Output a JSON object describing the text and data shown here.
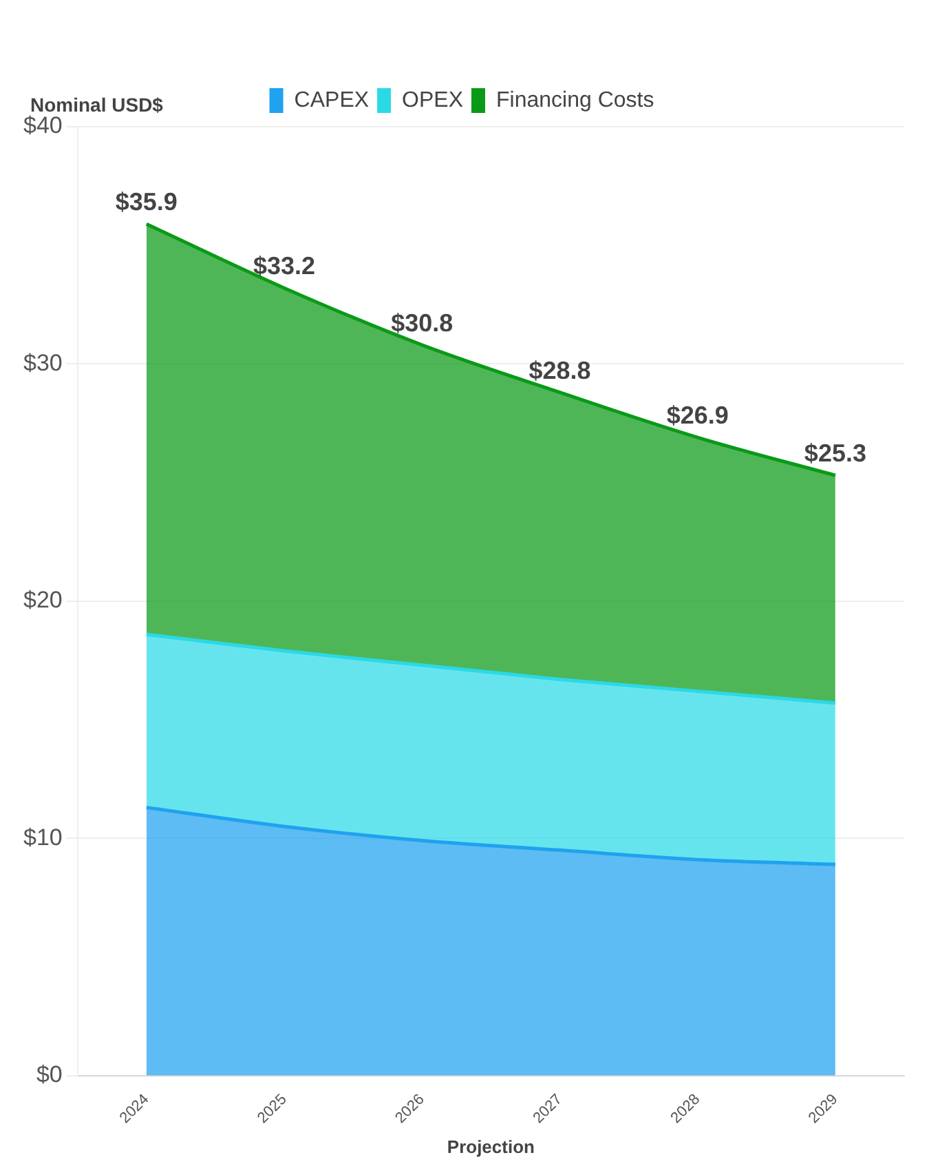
{
  "chart_data": {
    "type": "area",
    "stacked": true,
    "xlabel": "Projection",
    "ylabel": "Nominal USD$",
    "categories": [
      "2024",
      "2025",
      "2026",
      "2027",
      "2028",
      "2029"
    ],
    "series": [
      {
        "name": "CAPEX",
        "color": "#1fa2ef",
        "values": [
          11.3,
          10.5,
          9.9,
          9.5,
          9.1,
          8.9
        ]
      },
      {
        "name": "OPEX",
        "color": "#2bd9e6",
        "values": [
          7.3,
          7.4,
          7.4,
          7.2,
          7.1,
          6.8
        ]
      },
      {
        "name": "Financing Costs",
        "color": "#0b9a17",
        "values": [
          17.3,
          15.3,
          13.5,
          12.1,
          10.7,
          9.6
        ]
      }
    ],
    "totals": [
      "$35.9",
      "$33.2",
      "$30.8",
      "$28.8",
      "$26.9",
      "$25.3"
    ],
    "ylim": [
      0,
      40
    ],
    "yticks": [
      {
        "value": 0,
        "label": "$0"
      },
      {
        "value": 10,
        "label": "$10"
      },
      {
        "value": 20,
        "label": "$20"
      },
      {
        "value": 30,
        "label": "$30"
      },
      {
        "value": 40,
        "label": "$40"
      }
    ],
    "grid": "y",
    "legend": "top",
    "marker": "none",
    "line_style": "solid"
  }
}
